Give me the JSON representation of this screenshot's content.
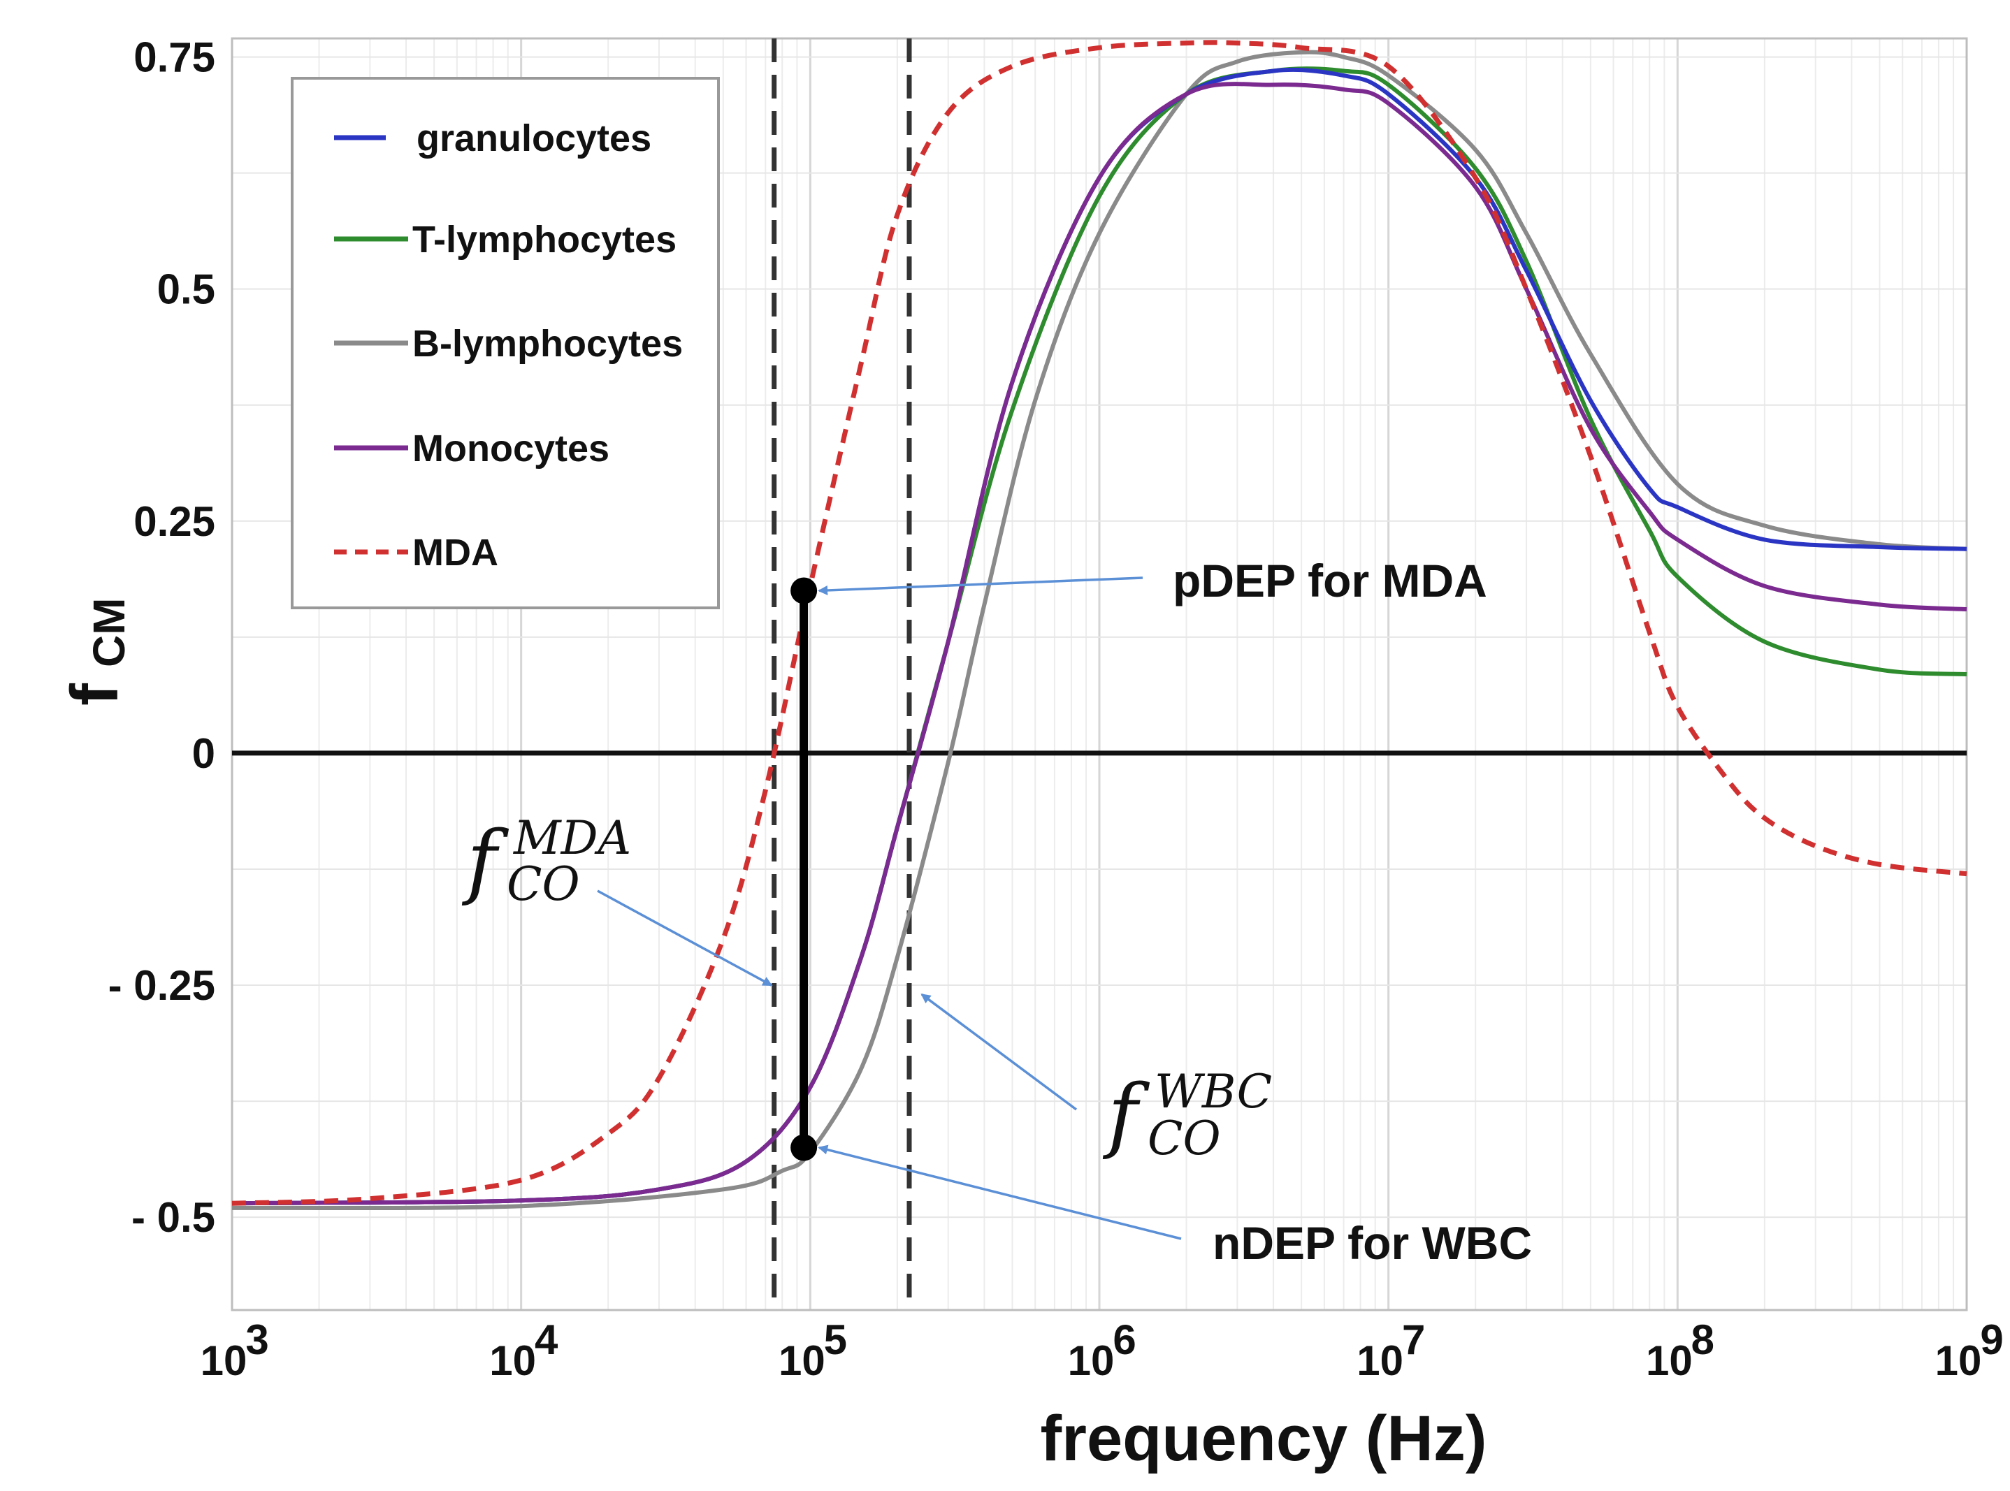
{
  "chart_data": {
    "type": "line",
    "x_scale": "log",
    "xlim": [
      1000,
      1000000000
    ],
    "ylim": [
      -0.6,
      0.77
    ],
    "grid": true,
    "xlabel": "frequency (Hz)",
    "ylabel": {
      "main": "f",
      "sub": "CM"
    },
    "y_ticks": [
      {
        "value": 0.75,
        "label": "0.75"
      },
      {
        "value": 0.5,
        "label": "0.5"
      },
      {
        "value": 0.25,
        "label": "0.25"
      },
      {
        "value": 0,
        "label": "0"
      },
      {
        "value": -0.25,
        "label": "- 0.25"
      },
      {
        "value": -0.5,
        "label": "- 0.5"
      }
    ],
    "x_ticks": [
      {
        "value": 1000,
        "base": "10",
        "exp": "3"
      },
      {
        "value": 10000,
        "base": "10",
        "exp": "4"
      },
      {
        "value": 100000,
        "base": "10",
        "exp": "5"
      },
      {
        "value": 1000000,
        "base": "10",
        "exp": "6"
      },
      {
        "value": 10000000,
        "base": "10",
        "exp": "7"
      },
      {
        "value": 100000000,
        "base": "10",
        "exp": "8"
      },
      {
        "value": 1000000000,
        "base": "10",
        "exp": "9"
      }
    ],
    "legend": {
      "position": "top-left"
    },
    "series": [
      {
        "name": "granulocytes",
        "color": "#2b35c4",
        "dash": false,
        "x": [
          1000,
          10000,
          30000,
          60000,
          100000,
          150000,
          200000,
          300000,
          500000,
          1000000,
          2000000,
          4000000,
          7000000,
          10000000,
          20000000,
          30000000,
          50000000,
          80000000,
          100000000,
          200000000,
          500000000,
          1000000000
        ],
        "y": [
          -0.485,
          -0.482,
          -0.47,
          -0.44,
          -0.36,
          -0.22,
          -0.08,
          0.12,
          0.4,
          0.62,
          0.71,
          0.735,
          0.73,
          0.71,
          0.62,
          0.52,
          0.38,
          0.285,
          0.265,
          0.23,
          0.222,
          0.22
        ]
      },
      {
        "name": "T-lymphocytes",
        "color": "#2e8b2e",
        "dash": false,
        "x": [
          1000,
          10000,
          30000,
          60000,
          100000,
          150000,
          200000,
          300000,
          500000,
          1000000,
          2000000,
          4000000,
          7000000,
          10000000,
          20000000,
          30000000,
          50000000,
          80000000,
          100000000,
          200000000,
          500000000,
          1000000000
        ],
        "y": [
          -0.485,
          -0.482,
          -0.47,
          -0.44,
          -0.36,
          -0.22,
          -0.08,
          0.12,
          0.37,
          0.6,
          0.71,
          0.735,
          0.735,
          0.72,
          0.63,
          0.53,
          0.36,
          0.24,
          0.19,
          0.12,
          0.09,
          0.085
        ]
      },
      {
        "name": "B-lymphocytes",
        "color": "#8a8a8a",
        "dash": false,
        "x": [
          1000,
          10000,
          50000,
          80000,
          100000,
          150000,
          200000,
          300000,
          400000,
          600000,
          1000000,
          2000000,
          3000000,
          5000000,
          7000000,
          10000000,
          20000000,
          30000000,
          50000000,
          100000000,
          200000000,
          500000000,
          1000000000
        ],
        "y": [
          -0.49,
          -0.488,
          -0.47,
          -0.45,
          -0.43,
          -0.34,
          -0.22,
          -0.01,
          0.16,
          0.38,
          0.56,
          0.71,
          0.745,
          0.755,
          0.75,
          0.73,
          0.65,
          0.56,
          0.43,
          0.29,
          0.245,
          0.225,
          0.22
        ]
      },
      {
        "name": "Monocytes",
        "color": "#7b2a8f",
        "dash": false,
        "x": [
          1000,
          10000,
          30000,
          60000,
          100000,
          150000,
          200000,
          300000,
          500000,
          1000000,
          2000000,
          4000000,
          7000000,
          10000000,
          20000000,
          30000000,
          50000000,
          80000000,
          100000000,
          200000000,
          500000000,
          1000000000
        ],
        "y": [
          -0.485,
          -0.482,
          -0.47,
          -0.44,
          -0.36,
          -0.22,
          -0.08,
          0.12,
          0.4,
          0.62,
          0.71,
          0.72,
          0.715,
          0.7,
          0.61,
          0.5,
          0.35,
          0.26,
          0.23,
          0.18,
          0.16,
          0.155
        ]
      },
      {
        "name": "MDA",
        "color": "#d03030",
        "dash": true,
        "x": [
          1000,
          3000,
          10000,
          20000,
          30000,
          50000,
          70000,
          100000,
          150000,
          200000,
          300000,
          500000,
          1000000,
          2000000,
          3000000,
          5000000,
          10000000,
          20000000,
          30000000,
          50000000,
          80000000,
          100000000,
          150000000,
          200000000,
          300000000,
          500000000,
          1000000000
        ],
        "y": [
          -0.485,
          -0.48,
          -0.46,
          -0.41,
          -0.35,
          -0.2,
          -0.04,
          0.18,
          0.42,
          0.58,
          0.69,
          0.74,
          0.76,
          0.765,
          0.765,
          0.76,
          0.74,
          0.62,
          0.5,
          0.32,
          0.13,
          0.05,
          -0.03,
          -0.07,
          -0.1,
          -0.12,
          -0.13
        ]
      }
    ],
    "vlines": [
      {
        "name": "f_CO_MDA",
        "x": 75000
      },
      {
        "name": "f_CO_WBC",
        "x": 220000
      }
    ],
    "marker_segment": {
      "x": 95000,
      "y_top": 0.175,
      "y_bottom": -0.425
    },
    "annotations": {
      "pdep": {
        "text": "pDEP for MDA",
        "arrow_to": {
          "x": 95000,
          "y": 0.175
        }
      },
      "ndep": {
        "text": "nDEP for WBC",
        "arrow_to": {
          "x": 95000,
          "y": -0.425
        }
      },
      "fco_mda": {
        "base": "f",
        "sub": "CO",
        "sup": "MDA",
        "arrow_to": {
          "x": 75000,
          "y": -0.25
        }
      },
      "fco_wbc": {
        "base": "f",
        "sub": "CO",
        "sup": "WBC",
        "arrow_to": {
          "x": 220000,
          "y": -0.26
        }
      }
    },
    "colors": {
      "arrow": "#5b8fd6",
      "axis": "#111111",
      "grid": "#e3e3e3",
      "vline": "#333333",
      "frame": "#bdbdbd"
    }
  }
}
